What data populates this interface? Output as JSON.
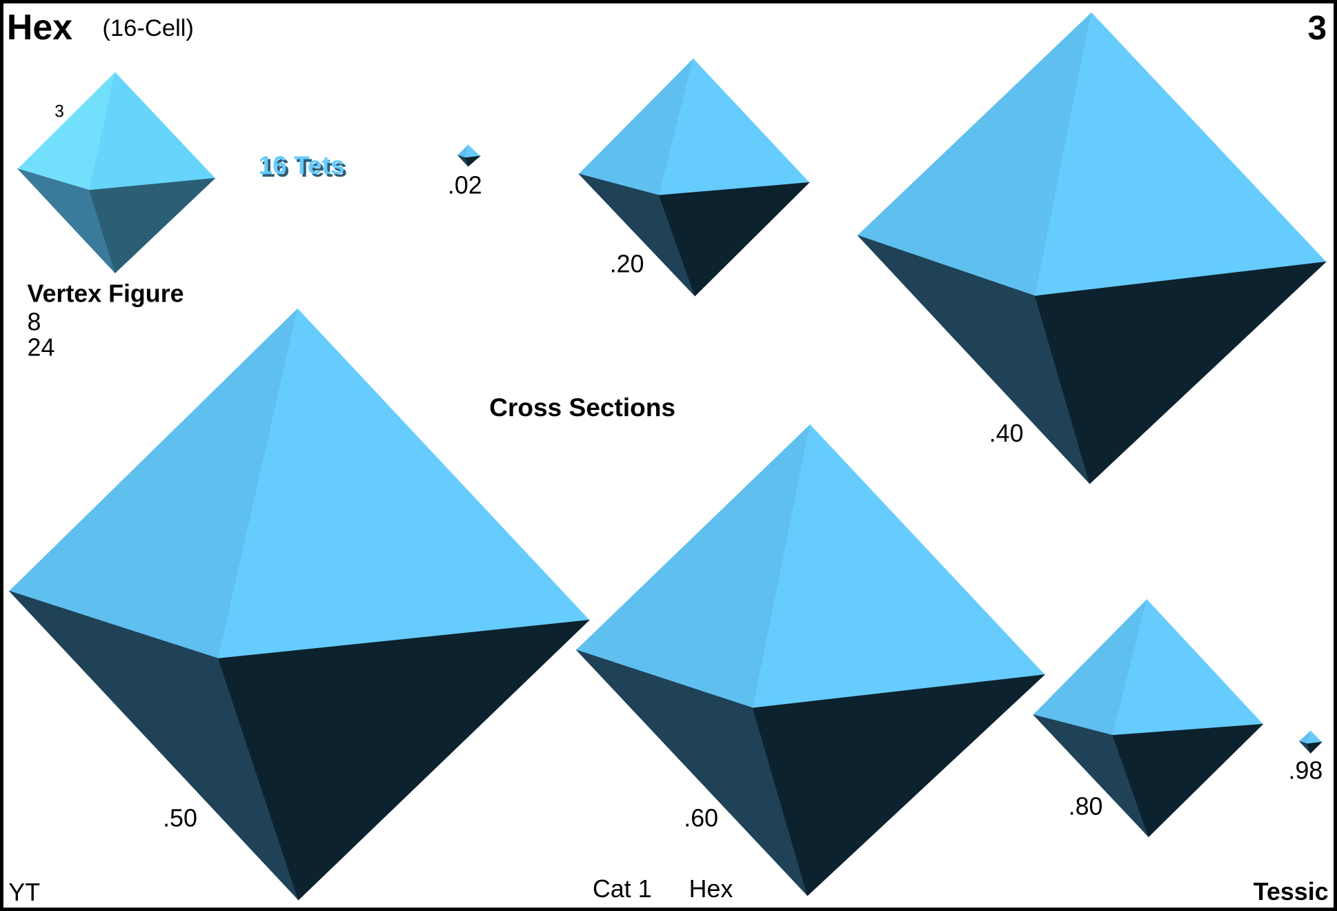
{
  "header": {
    "title": "Hex",
    "subtitle": "(16-Cell)",
    "number": "3"
  },
  "vertex_figure": {
    "edge_label": "3",
    "label": "Vertex Figure",
    "counts": [
      "8",
      "24"
    ]
  },
  "cells_label": "16 Tets",
  "cross_sections": {
    "title": "Cross Sections",
    "labels": [
      ".02",
      ".20",
      ".40",
      ".50",
      ".60",
      ".80",
      ".98"
    ]
  },
  "footer": {
    "left": "YT",
    "center": [
      "Cat 1",
      "Hex"
    ],
    "right": "Tessic"
  }
}
